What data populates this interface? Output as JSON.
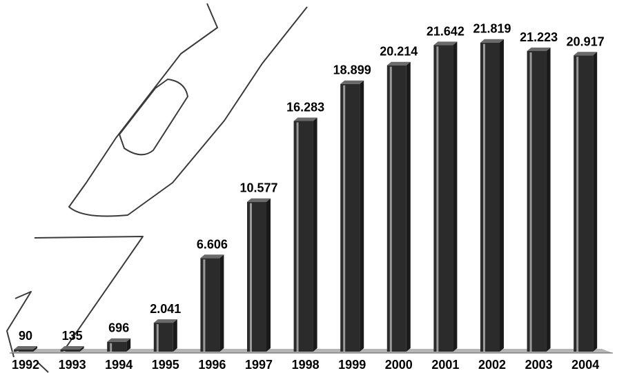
{
  "chart_data": {
    "type": "bar",
    "title": "",
    "xlabel": "",
    "ylabel": "",
    "categories": [
      "1992",
      "1993",
      "1994",
      "1995",
      "1996",
      "1997",
      "1998",
      "1999",
      "2000",
      "2001",
      "2002",
      "2003",
      "2004"
    ],
    "values": [
      90,
      135,
      696,
      2041,
      6606,
      10577,
      16283,
      18899,
      20214,
      21642,
      21819,
      21223,
      20917
    ],
    "value_labels": [
      "90",
      "135",
      "696",
      "2.041",
      "6.606",
      "10.577",
      "16.283",
      "18.899",
      "20.214",
      "21.642",
      "21.819",
      "21.223",
      "20.917"
    ],
    "ylim": [
      0,
      22000
    ],
    "grid": false,
    "legend": "none",
    "colors": {
      "bar": "#2b2b2b",
      "bar_highlight": "#9a9a9a",
      "floor": "#8c8c8c",
      "watermark": "#3a3a3a"
    }
  }
}
